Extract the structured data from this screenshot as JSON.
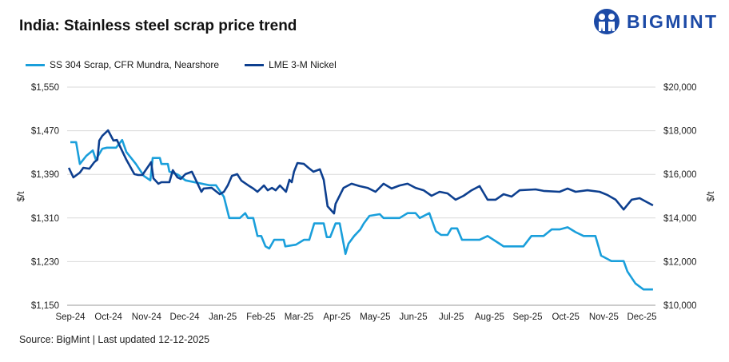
{
  "title": "India: Stainless steel scrap price trend",
  "logo": {
    "text": "BIGMINT",
    "color": "#1c4aa6"
  },
  "source": "Source: BigMint | Last updated 12-12-2025",
  "chart_data": {
    "type": "line",
    "title": "India: Stainless steel scrap price trend",
    "x_note": "x = months since Sep-24 (0 = Sep-24 tick)",
    "x_ticks": [
      "Sep-24",
      "Oct-24",
      "Nov-24",
      "Dec-24",
      "Jan-25",
      "Feb-25",
      "Mar-25",
      "Apr-25",
      "May-25",
      "Jun-25",
      "Jul-25",
      "Aug-25",
      "Sep-25",
      "Oct-25",
      "Nov-25",
      "Dec-25"
    ],
    "ylabel_left": "$/t",
    "ylabel_right": "$/t",
    "ylim_left": [
      1150,
      1550
    ],
    "ylim_right": [
      10000,
      20000
    ],
    "y_ticks_left": [
      "$1,150",
      "$1,230",
      "$1,310",
      "$1,390",
      "$1,470",
      "$1,550"
    ],
    "y_ticks_right": [
      "$10,000",
      "$12,000",
      "$14,000",
      "$16,000",
      "$18,000",
      "$20,000"
    ],
    "grid": true,
    "legend_position": "top-left",
    "series": [
      {
        "name": "SS 304 Scrap, CFR Mundra, Nearshore",
        "axis": "left",
        "color": "#1a9fdb",
        "points": [
          [
            0,
            1449
          ],
          [
            0.15,
            1449
          ],
          [
            0.25,
            1409
          ],
          [
            0.42,
            1424
          ],
          [
            0.59,
            1434
          ],
          [
            0.67,
            1417
          ],
          [
            0.84,
            1437
          ],
          [
            0.96,
            1439
          ],
          [
            1.2,
            1439
          ],
          [
            1.36,
            1453
          ],
          [
            1.47,
            1431
          ],
          [
            1.72,
            1409
          ],
          [
            1.93,
            1387
          ],
          [
            2.1,
            1379
          ],
          [
            2.16,
            1420
          ],
          [
            2.35,
            1420
          ],
          [
            2.39,
            1409
          ],
          [
            2.56,
            1409
          ],
          [
            2.6,
            1395
          ],
          [
            2.81,
            1390
          ],
          [
            3.02,
            1379
          ],
          [
            3.65,
            1370
          ],
          [
            3.82,
            1370
          ],
          [
            4.03,
            1349
          ],
          [
            4.17,
            1310
          ],
          [
            4.45,
            1310
          ],
          [
            4.59,
            1319
          ],
          [
            4.66,
            1310
          ],
          [
            4.8,
            1310
          ],
          [
            4.91,
            1277
          ],
          [
            5.01,
            1277
          ],
          [
            5.12,
            1258
          ],
          [
            5.22,
            1254
          ],
          [
            5.35,
            1270
          ],
          [
            5.6,
            1270
          ],
          [
            5.64,
            1258
          ],
          [
            5.92,
            1261
          ],
          [
            6.13,
            1270
          ],
          [
            6.27,
            1270
          ],
          [
            6.4,
            1300
          ],
          [
            6.65,
            1300
          ],
          [
            6.73,
            1275
          ],
          [
            6.82,
            1275
          ],
          [
            6.96,
            1300
          ],
          [
            7.07,
            1300
          ],
          [
            7.17,
            1263
          ],
          [
            7.22,
            1244
          ],
          [
            7.3,
            1263
          ],
          [
            7.45,
            1277
          ],
          [
            7.61,
            1289
          ],
          [
            7.7,
            1300
          ],
          [
            7.85,
            1314
          ],
          [
            8.12,
            1317
          ],
          [
            8.22,
            1310
          ],
          [
            8.64,
            1310
          ],
          [
            8.85,
            1319
          ],
          [
            9.06,
            1319
          ],
          [
            9.17,
            1310
          ],
          [
            9.42,
            1319
          ],
          [
            9.59,
            1286
          ],
          [
            9.73,
            1279
          ],
          [
            9.9,
            1279
          ],
          [
            10.0,
            1291
          ],
          [
            10.15,
            1291
          ],
          [
            10.28,
            1270
          ],
          [
            10.74,
            1270
          ],
          [
            10.95,
            1277
          ],
          [
            11.26,
            1263
          ],
          [
            11.37,
            1258
          ],
          [
            11.89,
            1258
          ],
          [
            12.1,
            1277
          ],
          [
            12.42,
            1277
          ],
          [
            12.63,
            1289
          ],
          [
            12.84,
            1289
          ],
          [
            13.05,
            1293
          ],
          [
            13.26,
            1284
          ],
          [
            13.47,
            1277
          ],
          [
            13.78,
            1277
          ],
          [
            13.93,
            1241
          ],
          [
            14.2,
            1231
          ],
          [
            14.52,
            1231
          ],
          [
            14.62,
            1212
          ],
          [
            14.83,
            1190
          ],
          [
            15.04,
            1179
          ],
          [
            15.29,
            1179
          ]
        ]
      },
      {
        "name": "LME 3-M Nickel",
        "axis": "right",
        "color": "#0d3f8f",
        "points": [
          [
            -0.04,
            16300
          ],
          [
            0.08,
            15860
          ],
          [
            0.25,
            16080
          ],
          [
            0.34,
            16300
          ],
          [
            0.5,
            16260
          ],
          [
            0.63,
            16560
          ],
          [
            0.71,
            16670
          ],
          [
            0.76,
            17550
          ],
          [
            0.84,
            17770
          ],
          [
            0.99,
            18020
          ],
          [
            1.13,
            17550
          ],
          [
            1.22,
            17580
          ],
          [
            1.3,
            17290
          ],
          [
            1.47,
            16670
          ],
          [
            1.68,
            16010
          ],
          [
            1.78,
            15970
          ],
          [
            1.89,
            15970
          ],
          [
            2.12,
            16560
          ],
          [
            2.18,
            15820
          ],
          [
            2.31,
            15570
          ],
          [
            2.39,
            15640
          ],
          [
            2.6,
            15640
          ],
          [
            2.69,
            16190
          ],
          [
            2.81,
            15860
          ],
          [
            2.9,
            15790
          ],
          [
            3.02,
            16010
          ],
          [
            3.19,
            16120
          ],
          [
            3.44,
            15200
          ],
          [
            3.5,
            15350
          ],
          [
            3.71,
            15380
          ],
          [
            3.92,
            15090
          ],
          [
            4.03,
            15200
          ],
          [
            4.13,
            15490
          ],
          [
            4.24,
            15930
          ],
          [
            4.38,
            16010
          ],
          [
            4.49,
            15710
          ],
          [
            4.7,
            15460
          ],
          [
            4.8,
            15350
          ],
          [
            4.91,
            15200
          ],
          [
            5.08,
            15490
          ],
          [
            5.18,
            15270
          ],
          [
            5.29,
            15380
          ],
          [
            5.39,
            15270
          ],
          [
            5.5,
            15490
          ],
          [
            5.66,
            15200
          ],
          [
            5.75,
            15750
          ],
          [
            5.81,
            15640
          ],
          [
            5.87,
            16120
          ],
          [
            5.96,
            16520
          ],
          [
            6.13,
            16480
          ],
          [
            6.25,
            16300
          ],
          [
            6.38,
            16120
          ],
          [
            6.55,
            16230
          ],
          [
            6.65,
            15750
          ],
          [
            6.75,
            14540
          ],
          [
            6.92,
            14210
          ],
          [
            6.96,
            14650
          ],
          [
            7.17,
            15380
          ],
          [
            7.38,
            15570
          ],
          [
            7.59,
            15460
          ],
          [
            7.8,
            15380
          ],
          [
            8.01,
            15200
          ],
          [
            8.22,
            15570
          ],
          [
            8.43,
            15350
          ],
          [
            8.64,
            15490
          ],
          [
            8.85,
            15570
          ],
          [
            9.06,
            15380
          ],
          [
            9.27,
            15270
          ],
          [
            9.48,
            15020
          ],
          [
            9.69,
            15200
          ],
          [
            9.9,
            15130
          ],
          [
            10.11,
            14840
          ],
          [
            10.32,
            15020
          ],
          [
            10.53,
            15270
          ],
          [
            10.74,
            15460
          ],
          [
            10.95,
            14840
          ],
          [
            11.16,
            14840
          ],
          [
            11.37,
            15090
          ],
          [
            11.58,
            14980
          ],
          [
            11.79,
            15270
          ],
          [
            12.21,
            15310
          ],
          [
            12.42,
            15240
          ],
          [
            12.84,
            15200
          ],
          [
            13.05,
            15350
          ],
          [
            13.26,
            15200
          ],
          [
            13.57,
            15270
          ],
          [
            13.89,
            15200
          ],
          [
            14.1,
            15050
          ],
          [
            14.31,
            14840
          ],
          [
            14.52,
            14390
          ],
          [
            14.73,
            14840
          ],
          [
            14.94,
            14910
          ],
          [
            15.1,
            14760
          ],
          [
            15.29,
            14580
          ]
        ]
      }
    ]
  }
}
